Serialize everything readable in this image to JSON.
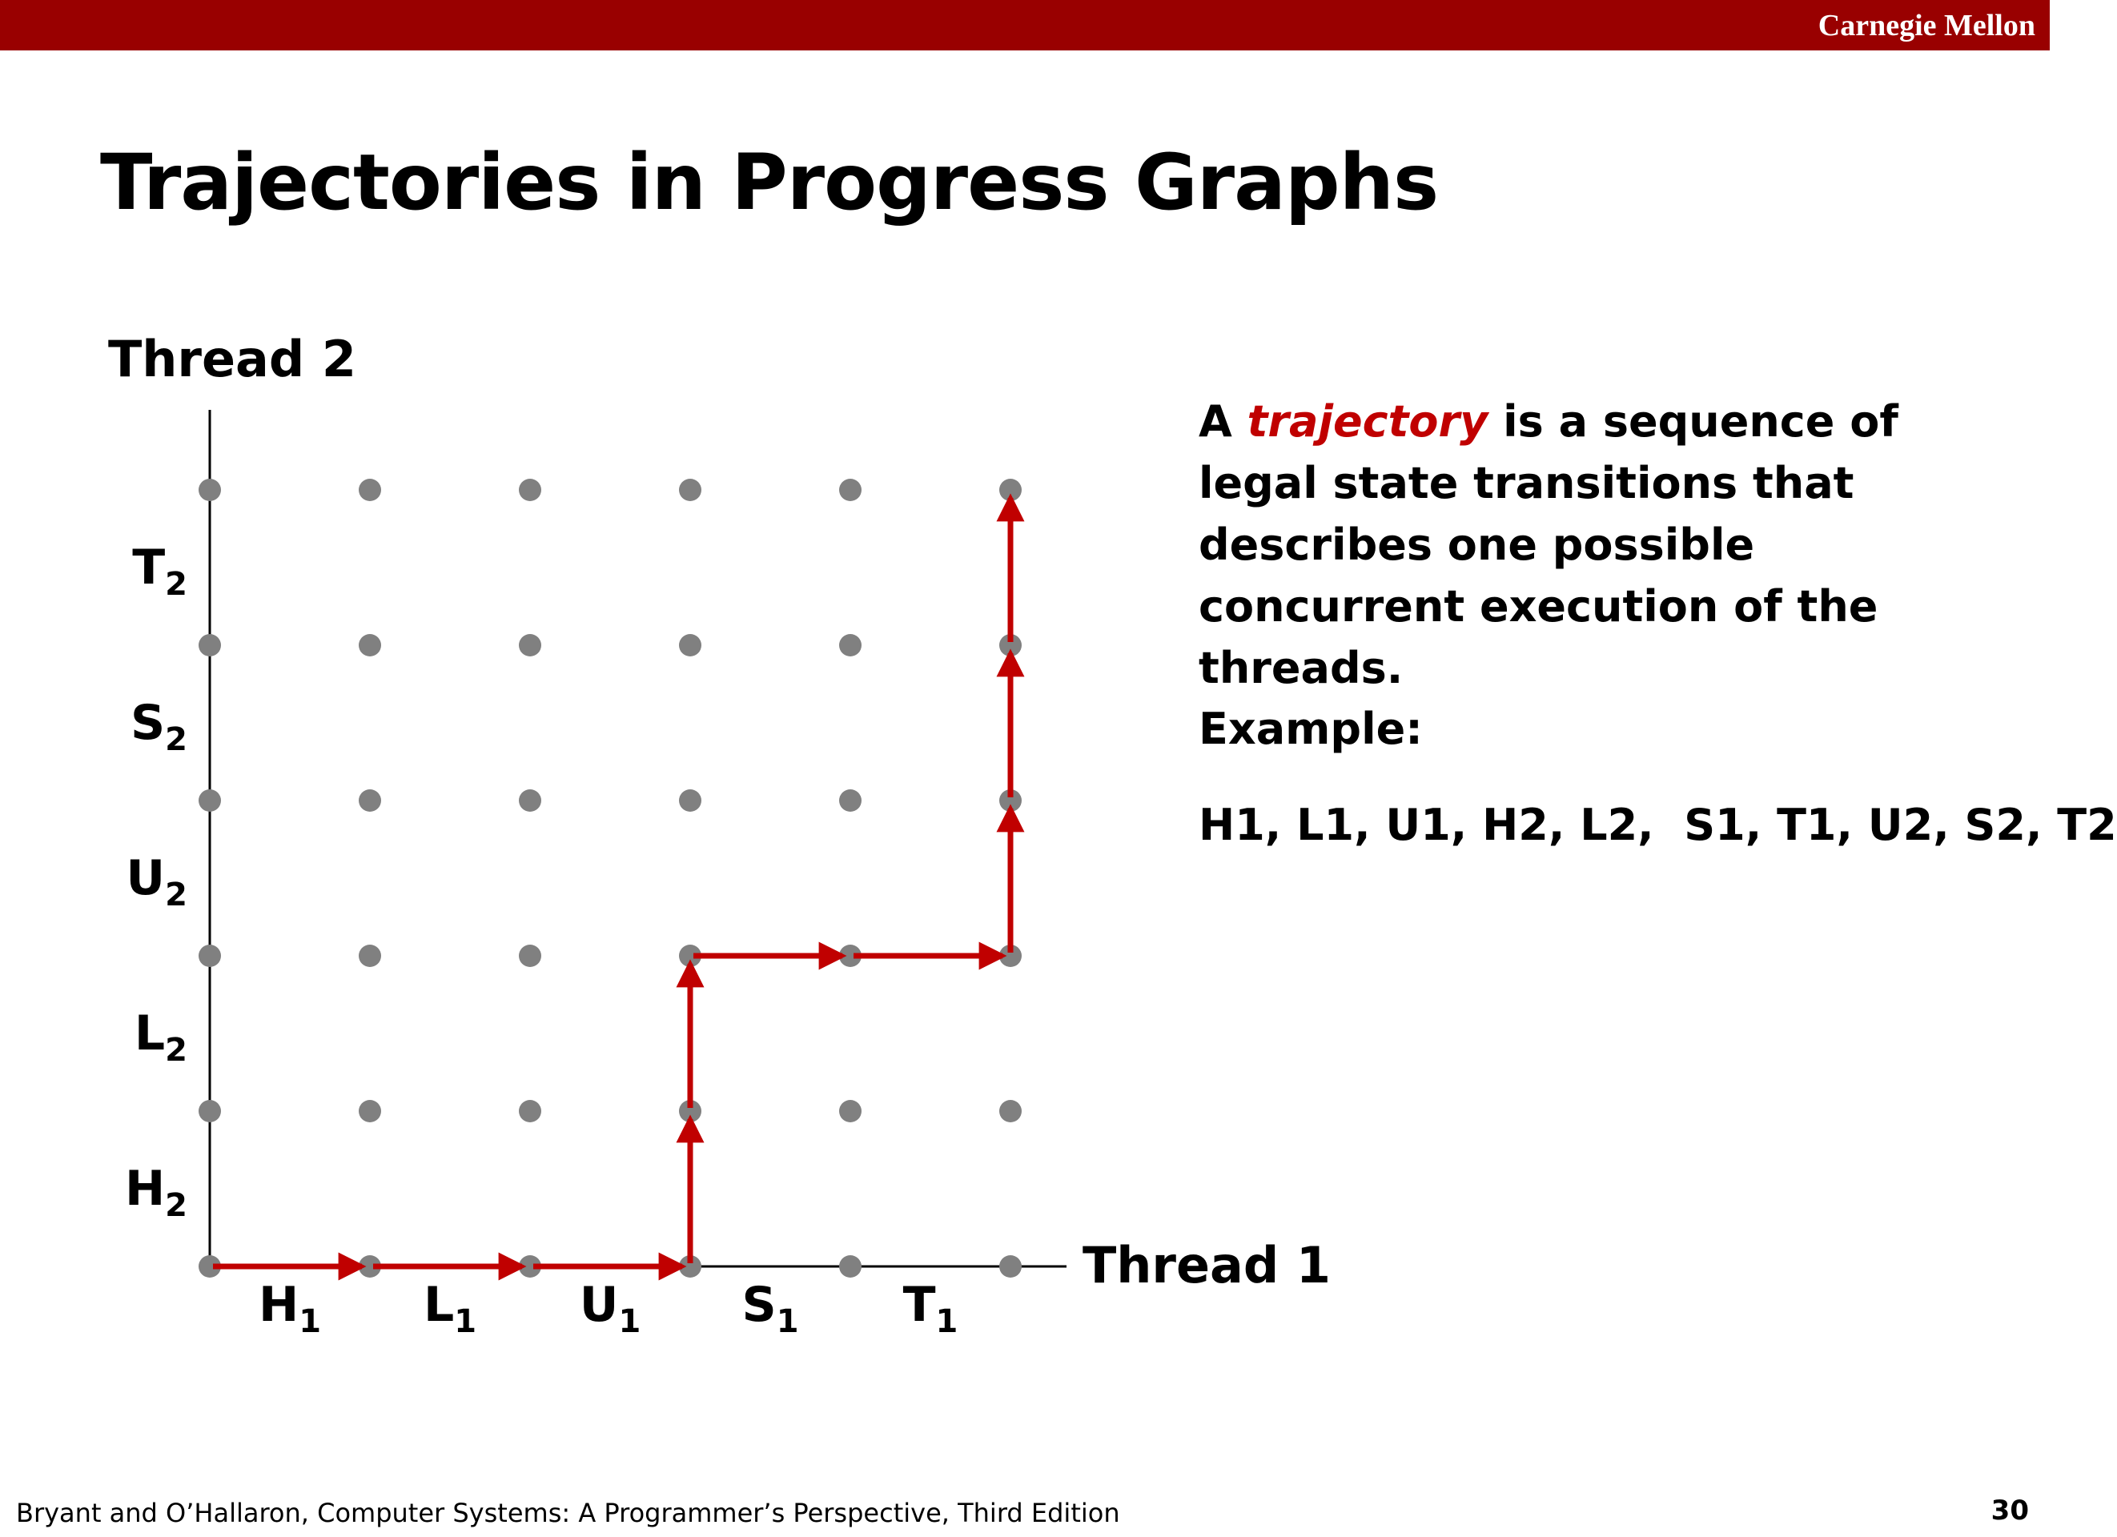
{
  "header": {
    "brand": "Carnegie Mellon",
    "bar_color": "#990000"
  },
  "slide": {
    "title": "Trajectories in Progress Graphs",
    "description_before": "A ",
    "description_term": "trajectory",
    "description_after": " is a sequence of legal state transitions that describes one possible concurrent execution of the threads.",
    "example_label": "Example:",
    "example_sequence": "H1, L1, U1, H2, L2,  S1, T1, U2, S2, T2",
    "term_color": "#c00000"
  },
  "graph": {
    "y_axis_title": "Thread 2",
    "x_axis_title": "Thread 1",
    "thread1_steps": [
      {
        "base": "H",
        "sub": "1"
      },
      {
        "base": "L",
        "sub": "1"
      },
      {
        "base": "U",
        "sub": "1"
      },
      {
        "base": "S",
        "sub": "1"
      },
      {
        "base": "T",
        "sub": "1"
      }
    ],
    "thread2_steps": [
      {
        "base": "H",
        "sub": "2"
      },
      {
        "base": "L",
        "sub": "2"
      },
      {
        "base": "U",
        "sub": "2"
      },
      {
        "base": "S",
        "sub": "2"
      },
      {
        "base": "T",
        "sub": "2"
      }
    ],
    "trajectory": [
      [
        0,
        0
      ],
      [
        1,
        0
      ],
      [
        2,
        0
      ],
      [
        3,
        0
      ],
      [
        3,
        1
      ],
      [
        3,
        2
      ],
      [
        4,
        2
      ],
      [
        5,
        2
      ],
      [
        5,
        3
      ],
      [
        5,
        4
      ],
      [
        5,
        5
      ]
    ],
    "point_color": "#808080",
    "arrow_color": "#c00000"
  },
  "footer": {
    "citation": "Bryant and O’Hallaron, Computer Systems: A Programmer’s Perspective, Third Edition",
    "page_number": "30"
  }
}
